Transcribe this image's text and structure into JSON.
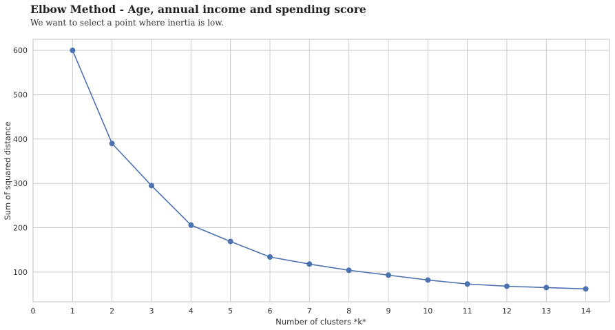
{
  "chart_data": {
    "type": "line",
    "title": "Elbow Method - Age, annual income and spending score",
    "subtitle": "We want to select a point where inertia is low.",
    "xlabel": "Number of clusters *k*",
    "ylabel": "Sum of squared distance",
    "x": [
      1,
      2,
      3,
      4,
      5,
      6,
      7,
      8,
      9,
      10,
      11,
      12,
      13,
      14
    ],
    "y": [
      600,
      390,
      295,
      206,
      169,
      134,
      118,
      104,
      93,
      82,
      73,
      68,
      65,
      62
    ],
    "xlim": [
      0,
      14.6
    ],
    "ylim": [
      33,
      625
    ],
    "xticks": [
      0,
      1,
      2,
      3,
      4,
      5,
      6,
      7,
      8,
      9,
      10,
      11,
      12,
      13,
      14
    ],
    "yticks": [
      100,
      200,
      300,
      400,
      500,
      600
    ],
    "grid": true,
    "line_color": "#4c72b0"
  }
}
